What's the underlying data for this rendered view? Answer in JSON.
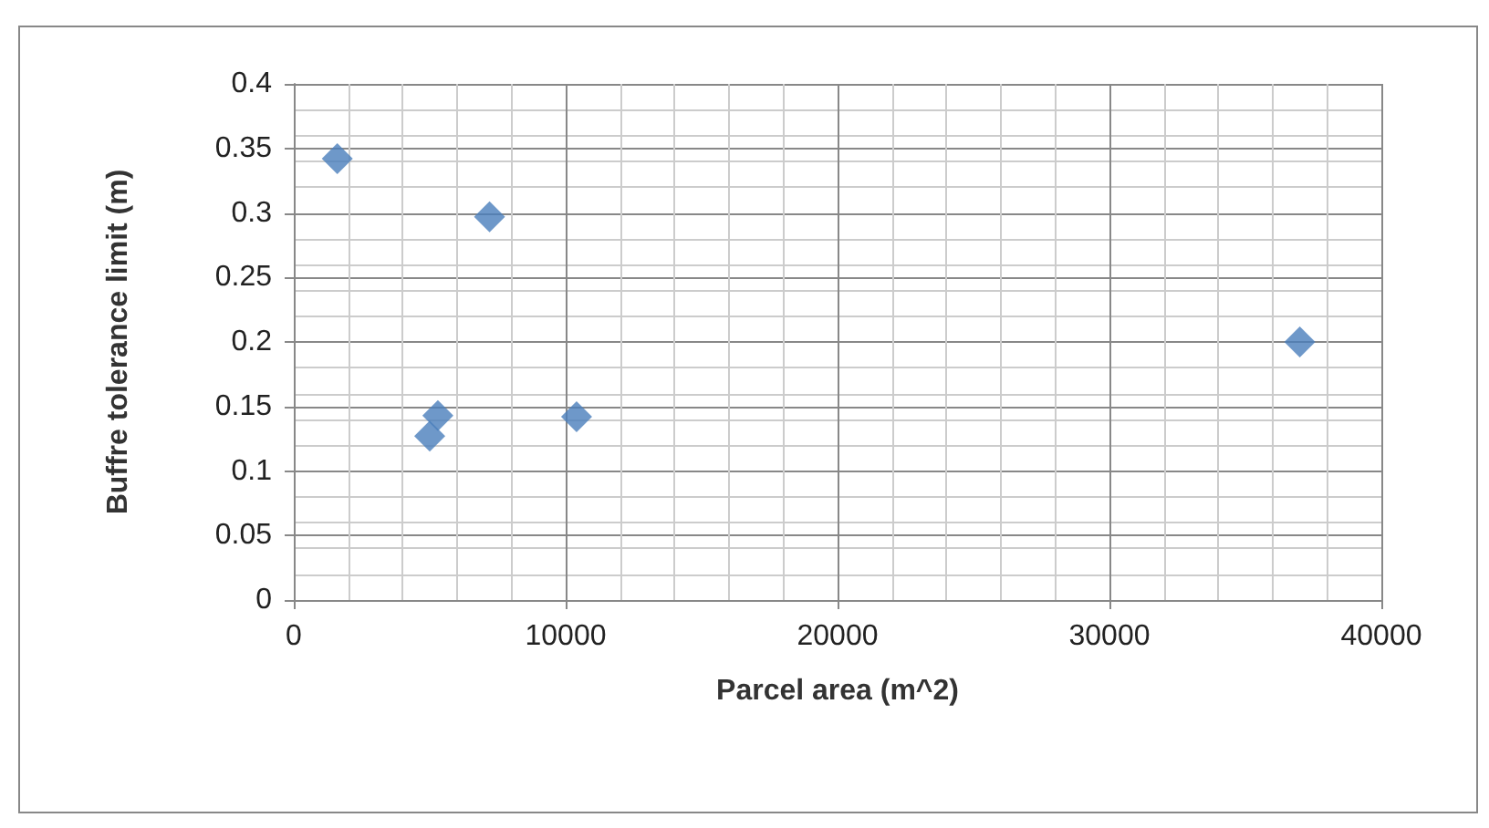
{
  "chart_data": {
    "type": "scatter",
    "xlabel": "Parcel area (m^2)",
    "ylabel": "Buffre tolerance limit (m)",
    "x": [
      1600,
      7200,
      5300,
      5000,
      10400,
      37000
    ],
    "values": [
      0.342,
      0.297,
      0.143,
      0.127,
      0.142,
      0.2
    ],
    "color": "#4a7ebb",
    "marker": "diamond",
    "grid": true,
    "xlim": [
      0,
      40000
    ],
    "xticks": [
      0,
      10000,
      20000,
      30000,
      40000
    ],
    "ylim": [
      0,
      0.4
    ],
    "yticks": [
      0,
      0.05,
      0.1,
      0.15,
      0.2,
      0.25,
      0.3,
      0.35,
      0.4
    ]
  }
}
